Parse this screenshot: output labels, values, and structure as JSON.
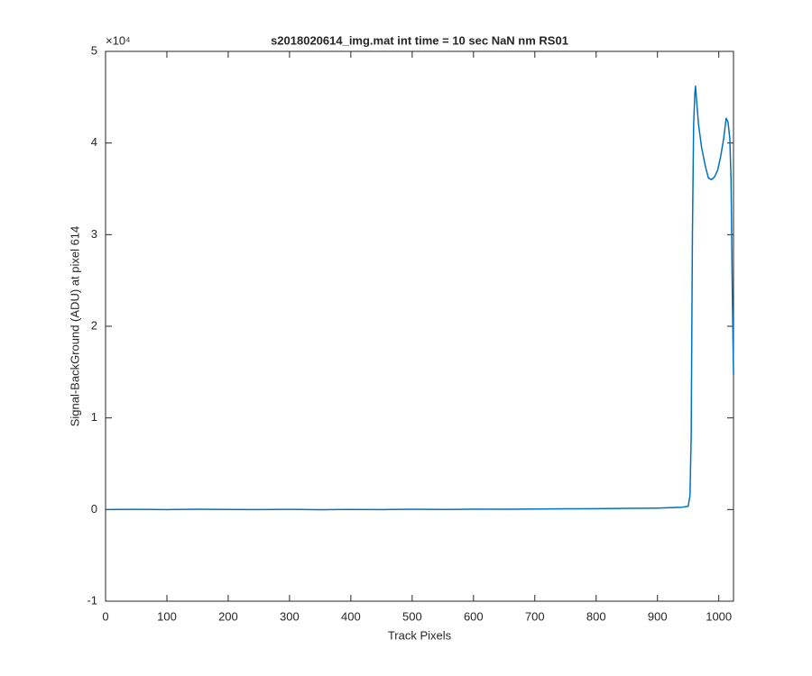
{
  "chart_data": {
    "type": "line",
    "title": "s2018020614_img.mat int time = 10 sec  NaN nm RS01",
    "x_label": "Track Pixels",
    "y_label": "Signal-BackGround (ADU) at pixel 614",
    "y_exponent_label": "×10⁴",
    "xlim": [
      0,
      1024
    ],
    "ylim": [
      -10000,
      50000
    ],
    "xticks": [
      0,
      100,
      200,
      300,
      400,
      500,
      600,
      700,
      800,
      900,
      1000
    ],
    "yticks": [
      {
        "value": -10000,
        "label": "-1"
      },
      {
        "value": 0,
        "label": "0"
      },
      {
        "value": 10000,
        "label": "1"
      },
      {
        "value": 20000,
        "label": "2"
      },
      {
        "value": 30000,
        "label": "3"
      },
      {
        "value": 40000,
        "label": "4"
      },
      {
        "value": 50000,
        "label": "5"
      }
    ],
    "grid": false,
    "series": [
      {
        "color": "#0072bd",
        "x": [
          1,
          50,
          100,
          150,
          200,
          250,
          300,
          350,
          400,
          450,
          500,
          550,
          600,
          650,
          700,
          750,
          800,
          850,
          900,
          920,
          940,
          950,
          953,
          955,
          957,
          959,
          961,
          962,
          964,
          967,
          972,
          978,
          983,
          988,
          993,
          998,
          1003,
          1008,
          1012,
          1015,
          1018,
          1020,
          1022,
          1024
        ],
        "values": [
          0,
          20,
          -10,
          30,
          10,
          0,
          20,
          -20,
          10,
          0,
          30,
          10,
          40,
          30,
          60,
          80,
          100,
          130,
          160,
          200,
          260,
          350,
          1500,
          8000,
          30000,
          42000,
          45500,
          46200,
          44500,
          42000,
          39500,
          37500,
          36200,
          36000,
          36300,
          37000,
          38500,
          40500,
          42700,
          42300,
          40500,
          36000,
          24000,
          14700
        ]
      }
    ]
  }
}
